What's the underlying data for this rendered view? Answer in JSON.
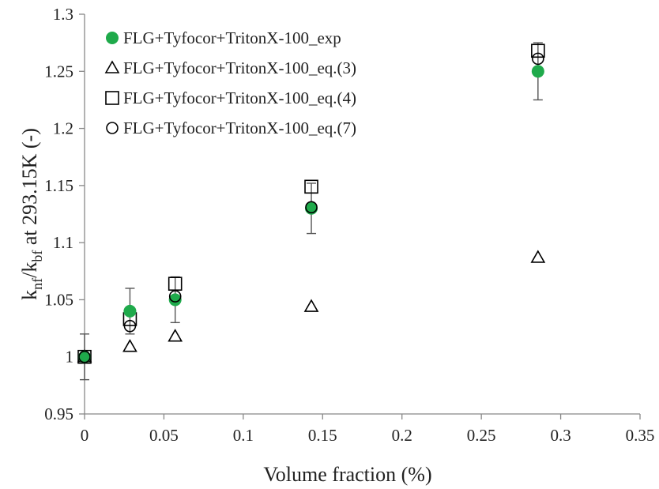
{
  "chart_data": {
    "type": "scatter",
    "xlabel": "Volume fraction (%)",
    "ylabel": {
      "text": "k",
      "sub1": "nf",
      "mid": "/k",
      "sub2": "bf",
      "tail": " at 293.15K (-)"
    },
    "xlim": [
      0,
      0.35
    ],
    "ylim": [
      0.95,
      1.3
    ],
    "xticks": [
      0,
      0.05,
      0.1,
      0.15,
      0.2,
      0.25,
      0.3,
      0.35
    ],
    "xtick_labels": [
      "0",
      "0.05",
      "0.1",
      "0.15",
      "0.2",
      "0.25",
      "0.3",
      "0.35"
    ],
    "yticks": [
      0.95,
      1.0,
      1.05,
      1.1,
      1.15,
      1.2,
      1.25,
      1.3
    ],
    "ytick_labels": [
      "0.95",
      "1",
      "1.05",
      "1.1",
      "1.15",
      "1.2",
      "1.25",
      "1.3"
    ],
    "grid": false,
    "legend_position": "top-left",
    "series": [
      {
        "name": "FLG+Tyfocor+TritonX-100_exp",
        "marker": "filled-circle",
        "color": "#1faa4b",
        "x": [
          0,
          0.0286,
          0.0571,
          0.1429,
          0.2857
        ],
        "y": [
          1.0,
          1.04,
          1.05,
          1.13,
          1.25
        ],
        "error": [
          0.02,
          0.02,
          0.02,
          0.022,
          0.025
        ]
      },
      {
        "name": "FLG+Tyfocor+TritonX-100_eq.(3)",
        "marker": "triangle",
        "color": "#000000",
        "x": [
          0,
          0.0286,
          0.0571,
          0.1429,
          0.2857
        ],
        "y": [
          1.0,
          1.009,
          1.018,
          1.044,
          1.087
        ]
      },
      {
        "name": "FLG+Tyfocor+TritonX-100_eq.(4)",
        "marker": "square",
        "color": "#000000",
        "x": [
          0,
          0.0286,
          0.0571,
          0.1429,
          0.2857
        ],
        "y": [
          1.0,
          1.033,
          1.064,
          1.149,
          1.268
        ]
      },
      {
        "name": "FLG+Tyfocor+TritonX-100_eq.(7)",
        "marker": "circle",
        "color": "#000000",
        "x": [
          0,
          0.0286,
          0.0571,
          0.1429,
          0.2857
        ],
        "y": [
          1.0,
          1.027,
          1.053,
          1.131,
          1.261
        ]
      }
    ]
  }
}
